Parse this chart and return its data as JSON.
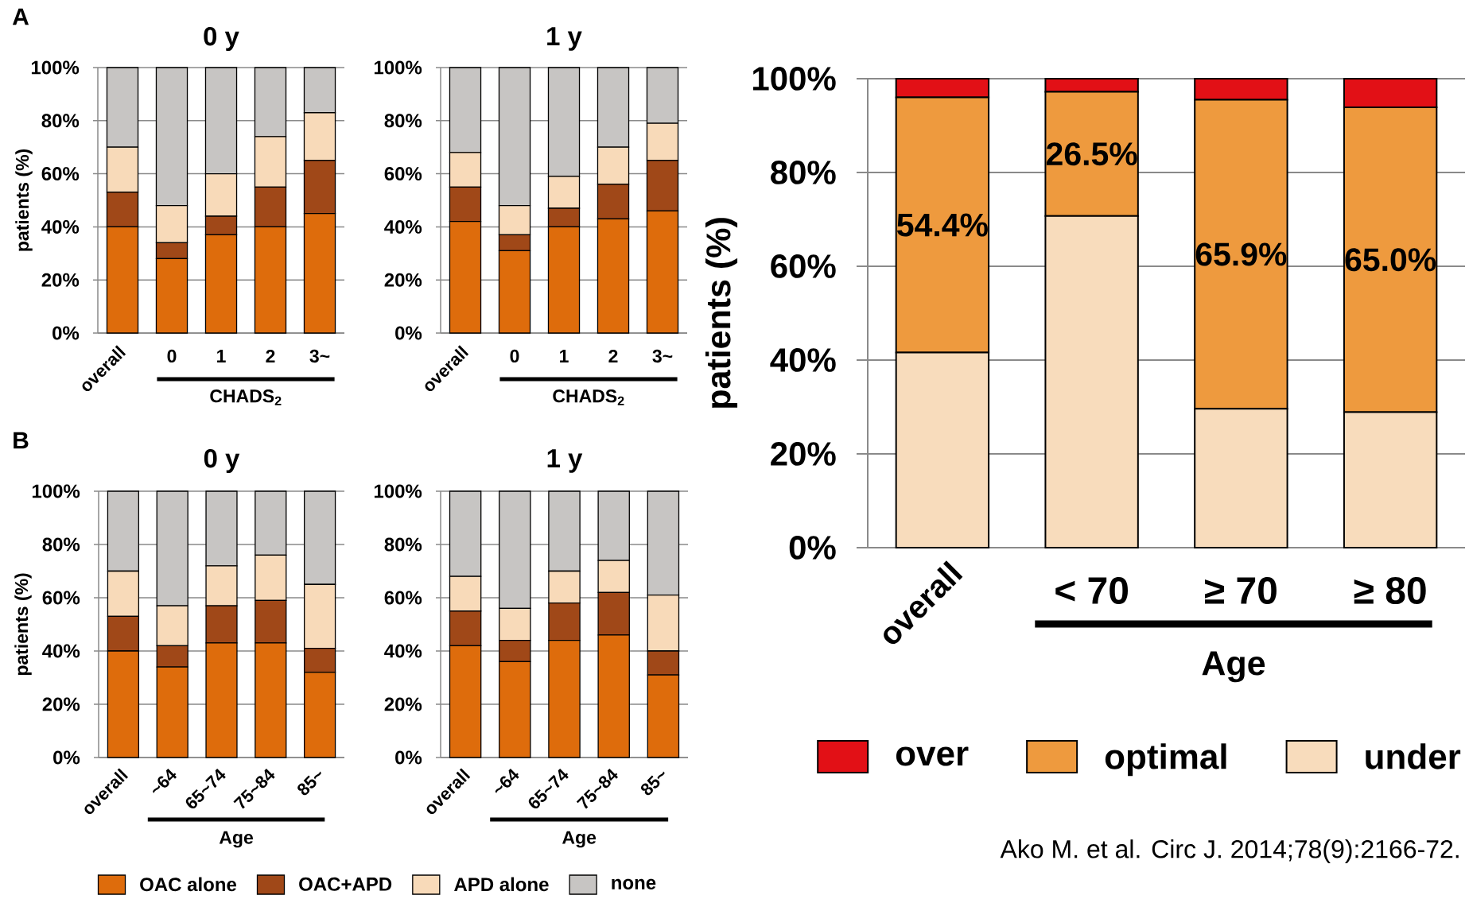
{
  "chart_data": [
    {
      "type": "bar",
      "stacked": true,
      "title": "0 y",
      "ylabel": "patients (%)",
      "xlabel": "CHADS$_{2}$",
      "annotations": [
        "A"
      ],
      "categories": [
        "overall",
        "0",
        "1",
        "2",
        "3~"
      ],
      "series": [
        {
          "color": "#DE6C0C",
          "values": [
            40,
            28,
            37,
            40,
            45
          ]
        },
        {
          "color": "#A04818",
          "values": [
            13,
            6,
            7,
            15,
            20
          ]
        },
        {
          "color": "#F8DAB9",
          "values": [
            17,
            14,
            16,
            19,
            18
          ]
        },
        {
          "color": "#C7C5C3",
          "values": [
            30,
            52,
            40,
            26,
            17
          ]
        }
      ],
      "ylim": [
        0,
        100
      ],
      "yticks": [
        {
          "value": 0,
          "label": "0%"
        },
        {
          "value": 20,
          "label": "20%"
        },
        {
          "value": 40,
          "label": "40%"
        },
        {
          "value": 60,
          "label": "60%"
        },
        {
          "value": 80,
          "label": "80%"
        },
        {
          "value": 100,
          "label": "100%"
        }
      ],
      "grid": "y"
    },
    {
      "type": "bar",
      "stacked": true,
      "title": "1 y",
      "xlabel": "CHADS$_{2}$",
      "categories": [
        "overall",
        "0",
        "1",
        "2",
        "3~"
      ],
      "series": [
        {
          "color": "#DE6C0C",
          "values": [
            42,
            31,
            40,
            43,
            46
          ]
        },
        {
          "color": "#A04818",
          "values": [
            13,
            6,
            7,
            13,
            19
          ]
        },
        {
          "color": "#F8DAB9",
          "values": [
            13,
            11,
            12,
            14,
            14
          ]
        },
        {
          "color": "#C7C5C3",
          "values": [
            32,
            52,
            41,
            30,
            21
          ]
        }
      ],
      "ylim": [
        0,
        100
      ],
      "yticks": [
        {
          "value": 0,
          "label": "0%"
        },
        {
          "value": 20,
          "label": "20%"
        },
        {
          "value": 40,
          "label": "40%"
        },
        {
          "value": 60,
          "label": "60%"
        },
        {
          "value": 80,
          "label": "80%"
        },
        {
          "value": 100,
          "label": "100%"
        }
      ],
      "grid": "y"
    },
    {
      "type": "bar",
      "stacked": true,
      "title": "0 y",
      "ylabel": "patients (%)",
      "xlabel": "Age",
      "annotations": [
        "B"
      ],
      "categories": [
        "overall",
        "~64",
        "65~74",
        "75~84",
        "85~"
      ],
      "series": [
        {
          "name": "OAC alone",
          "color": "#DE6C0C",
          "values": [
            40,
            34,
            43,
            43,
            32
          ]
        },
        {
          "name": "OAC+APD",
          "color": "#A04818",
          "values": [
            13,
            8,
            14,
            16,
            9
          ]
        },
        {
          "name": "APD alone",
          "color": "#F8DAB9",
          "values": [
            17,
            15,
            15,
            17,
            24
          ]
        },
        {
          "name": "none",
          "color": "#C7C5C3",
          "values": [
            30,
            43,
            28,
            24,
            35
          ]
        }
      ],
      "ylim": [
        0,
        100
      ],
      "yticks": [
        {
          "value": 0,
          "label": "0%"
        },
        {
          "value": 20,
          "label": "20%"
        },
        {
          "value": 40,
          "label": "40%"
        },
        {
          "value": 60,
          "label": "60%"
        },
        {
          "value": 80,
          "label": "80%"
        },
        {
          "value": 100,
          "label": "100%"
        }
      ],
      "grid": "y",
      "legend": "bottom"
    },
    {
      "type": "bar",
      "stacked": true,
      "title": "1 y",
      "xlabel": "Age",
      "categories": [
        "overall",
        "~64",
        "65~74",
        "75~84",
        "85~"
      ],
      "series": [
        {
          "color": "#DE6C0C",
          "values": [
            42,
            36,
            44,
            46,
            31
          ]
        },
        {
          "color": "#A04818",
          "values": [
            13,
            8,
            14,
            16,
            9
          ]
        },
        {
          "color": "#F8DAB9",
          "values": [
            13,
            12,
            12,
            12,
            21
          ]
        },
        {
          "color": "#C7C5C3",
          "values": [
            32,
            44,
            30,
            26,
            39
          ]
        }
      ],
      "ylim": [
        0,
        100
      ],
      "yticks": [
        {
          "value": 0,
          "label": "0%"
        },
        {
          "value": 20,
          "label": "20%"
        },
        {
          "value": 40,
          "label": "40%"
        },
        {
          "value": 60,
          "label": "60%"
        },
        {
          "value": 80,
          "label": "80%"
        },
        {
          "value": 100,
          "label": "100%"
        }
      ],
      "grid": "y"
    },
    {
      "type": "bar",
      "stacked": true,
      "ylabel": "patients (%)",
      "xlabel": "Age",
      "annotations": [
        "Ako M. et al. Circ J. 2014;78(9):2166-72."
      ],
      "categories": [
        "overall",
        "< 70",
        "≥ 70",
        "≥ 80"
      ],
      "series": [
        {
          "name": "under",
          "color": "#F8DCBC",
          "values": [
            41.6,
            70.7,
            29.6,
            28.9
          ]
        },
        {
          "name": "optimal",
          "color": "#EE9A3E",
          "values": [
            54.4,
            26.5,
            65.9,
            65.0
          ],
          "value_labels": [
            "54.4%",
            "26.5%",
            "65.9%",
            "65.0%"
          ]
        },
        {
          "name": "over",
          "color": "#E21016",
          "values": [
            4.0,
            2.8,
            4.5,
            6.1
          ]
        }
      ],
      "ylim": [
        0,
        100
      ],
      "yticks": [
        {
          "value": 0,
          "label": "0%"
        },
        {
          "value": 20,
          "label": "20%"
        },
        {
          "value": 40,
          "label": "40%"
        },
        {
          "value": 60,
          "label": "60%"
        },
        {
          "value": 80,
          "label": "80%"
        },
        {
          "value": 100,
          "label": "100%"
        }
      ],
      "grid": "y",
      "legend": "bottom"
    }
  ]
}
